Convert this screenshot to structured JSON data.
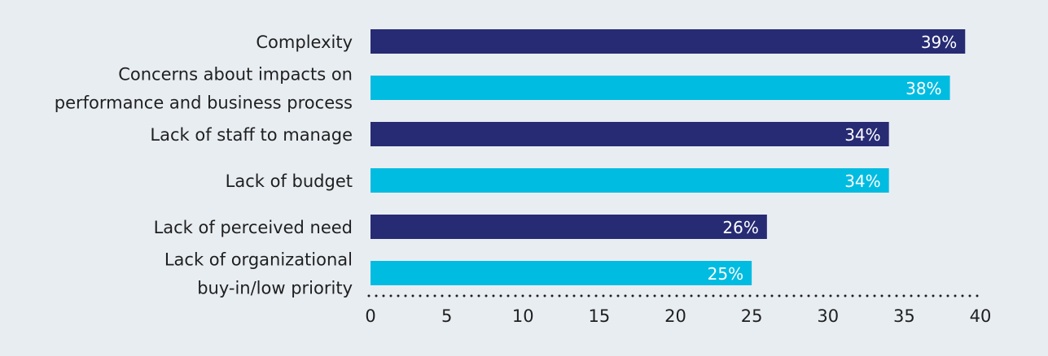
{
  "chart_data": {
    "type": "bar",
    "orientation": "horizontal",
    "categories": [
      "Complexity",
      "Concerns about impacts on performance and business process",
      "Lack of staff to manage",
      "Lack of budget",
      "Lack of perceived need",
      "Lack of organizational buy-in/low priority"
    ],
    "category_lines": [
      [
        "Complexity"
      ],
      [
        "Concerns about impacts on",
        "performance and business process"
      ],
      [
        "Lack of staff to manage"
      ],
      [
        "Lack of budget"
      ],
      [
        "Lack of perceived need"
      ],
      [
        "Lack of organizational",
        "buy-in/low priority"
      ]
    ],
    "values": [
      39,
      38,
      34,
      34,
      26,
      25
    ],
    "value_labels": [
      "39%",
      "38%",
      "34%",
      "34%",
      "26%",
      "25%"
    ],
    "bar_colors": [
      "#262b73",
      "#00bce1",
      "#262b73",
      "#00bce1",
      "#262b73",
      "#00bce1"
    ],
    "xlim": [
      0,
      40
    ],
    "xticks": [
      "0",
      "5",
      "10",
      "15",
      "20",
      "25",
      "30",
      "35",
      "40"
    ],
    "xtick_values": [
      0,
      5,
      10,
      15,
      20,
      25,
      30,
      35,
      40
    ],
    "axis_style": "dotted",
    "grid": false,
    "title": "",
    "xlabel": "",
    "ylabel": ""
  },
  "colors": {
    "background": "#e8edf2",
    "dark_bar": "#262b73",
    "light_bar": "#00bce1",
    "text": "#1f1f1f",
    "axis_dots": "#1f1f1f"
  }
}
